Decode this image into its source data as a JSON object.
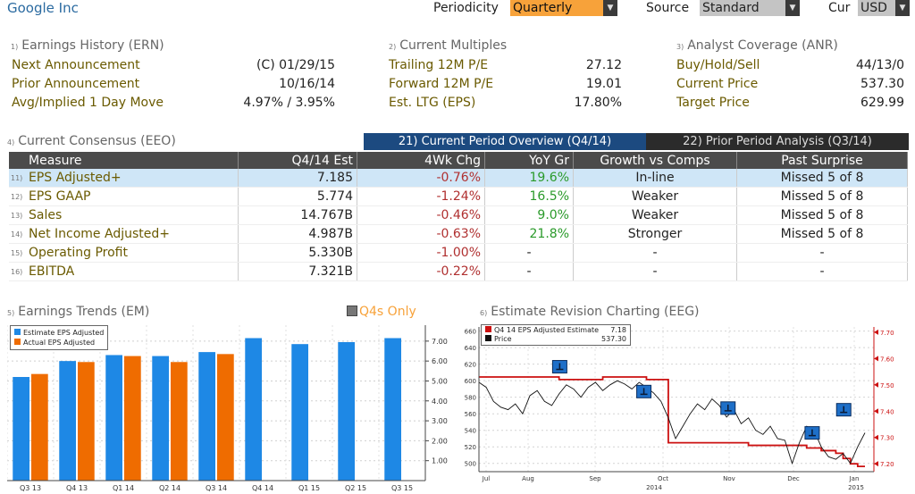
{
  "header": {
    "ticker": "Google Inc",
    "periodicity_label": "Periodicity",
    "periodicity_value": "Quarterly",
    "source_label": "Source",
    "source_value": "Standard",
    "currency_label": "Cur",
    "currency_value": "USD"
  },
  "earnings_history": {
    "num": "1)",
    "title": "Earnings History (ERN)",
    "rows": [
      {
        "label": "Next Announcement",
        "value": "(C)  01/29/15"
      },
      {
        "label": "Prior Announcement",
        "value": "10/16/14"
      },
      {
        "label": "Avg/Implied 1 Day Move",
        "value": "4.97% / 3.95%"
      }
    ]
  },
  "current_multiples": {
    "num": "2)",
    "title": "Current Multiples",
    "rows": [
      {
        "label": "Trailing 12M P/E",
        "value": "27.12"
      },
      {
        "label": "Forward 12M P/E",
        "value": "19.01"
      },
      {
        "label": "Est. LTG (EPS)",
        "value": "17.80%"
      }
    ]
  },
  "analyst_coverage": {
    "num": "3)",
    "title": "Analyst Coverage (ANR)",
    "rows": [
      {
        "label": "Buy/Hold/Sell",
        "value": "44/13/0"
      },
      {
        "label": "Current Price",
        "value": "537.30"
      },
      {
        "label": "Target Price",
        "value": "629.99"
      }
    ]
  },
  "consensus": {
    "num": "4)",
    "title": "Current Consensus (EEO)",
    "tab_current": "21) Current Period Overview (Q4/14)",
    "tab_prior": "22) Prior Period Analysis (Q3/14)",
    "columns": [
      "Measure",
      "Q4/14 Est",
      "4Wk Chg",
      "YoY Gr",
      "Growth vs Comps",
      "Past Surprise"
    ],
    "rows": [
      {
        "num": "11)",
        "measure": "EPS Adjusted+",
        "est": "7.185",
        "chg": "-0.76%",
        "yoy": "19.6%",
        "comps": "In-line",
        "surprise": "Missed 5 of 8"
      },
      {
        "num": "12)",
        "measure": "EPS GAAP",
        "est": "5.774",
        "chg": "-1.24%",
        "yoy": "16.5%",
        "comps": "Weaker",
        "surprise": "Missed 5 of 8"
      },
      {
        "num": "13)",
        "measure": "Sales",
        "est": "14.767B",
        "chg": "-0.46%",
        "yoy": "9.0%",
        "comps": "Weaker",
        "surprise": "Missed 5 of 8"
      },
      {
        "num": "14)",
        "measure": "Net Income Adjusted+",
        "est": "4.987B",
        "chg": "-0.63%",
        "yoy": "21.8%",
        "comps": "Stronger",
        "surprise": "Missed 5 of 8"
      },
      {
        "num": "15)",
        "measure": "Operating Profit",
        "est": "5.330B",
        "chg": "-1.00%",
        "yoy": "-",
        "comps": "-",
        "surprise": "-"
      },
      {
        "num": "16)",
        "measure": "EBITDA",
        "est": "7.321B",
        "chg": "-0.22%",
        "yoy": "-",
        "comps": "-",
        "surprise": "-"
      }
    ]
  },
  "earnings_trends": {
    "num": "5)",
    "title": "Earnings Trends (EM)",
    "q4_toggle": "Q4s Only",
    "legend": [
      "Estimate EPS Adjusted",
      "Actual EPS Adjusted"
    ],
    "colors": {
      "estimate": "#1e88e5",
      "actual": "#ef6c00"
    }
  },
  "revision_chart": {
    "num": "6)",
    "title": "Estimate Revision Charting (EEG)",
    "legend": [
      {
        "label": "Q4 14 EPS Adjusted Estimate",
        "value": "7.18"
      },
      {
        "label": "Price",
        "value": "537.30"
      }
    ],
    "colors": {
      "estimate": "#cc1111",
      "price": "#111111"
    }
  },
  "chart_data": [
    {
      "type": "bar",
      "title": "Earnings Trends (EM)",
      "categories": [
        "Q3 13",
        "Q4 13",
        "Q1 14",
        "Q2 14",
        "Q3 14",
        "Q4 14",
        "Q1 15",
        "Q2 15",
        "Q3 15"
      ],
      "series": [
        {
          "name": "Estimate EPS Adjusted",
          "values": [
            5.2,
            6.0,
            6.3,
            6.25,
            6.45,
            7.15,
            6.85,
            6.95,
            7.15
          ]
        },
        {
          "name": "Actual EPS Adjusted",
          "values": [
            5.35,
            5.95,
            6.25,
            5.95,
            6.35,
            null,
            null,
            null,
            null
          ]
        }
      ],
      "yticks": [
        "1.00",
        "2.00",
        "3.00",
        "4.00",
        "5.00",
        "6.00",
        "7.00"
      ],
      "ylim": [
        0,
        7.8
      ]
    },
    {
      "type": "line",
      "title": "Estimate Revision Charting (EEG)",
      "x_labels": [
        "Jul",
        "Aug",
        "Sep",
        "Oct",
        "Nov",
        "Dec",
        "Jan"
      ],
      "x_year_labels": [
        "2014",
        "2015"
      ],
      "left_yticks": [
        "500",
        "520",
        "540",
        "560",
        "580",
        "600",
        "620",
        "640",
        "660"
      ],
      "right_yticks": [
        "7.20",
        "7.30",
        "7.40",
        "7.50",
        "7.60",
        "7.70"
      ],
      "left_ylim": [
        490,
        665
      ],
      "right_ylim": [
        7.17,
        7.72
      ],
      "series": [
        {
          "name": "Price",
          "axis": "left",
          "values": [
            598,
            592,
            575,
            568,
            565,
            572,
            560,
            582,
            588,
            575,
            570,
            584,
            595,
            590,
            580,
            592,
            598,
            588,
            595,
            600,
            596,
            590,
            598,
            592,
            585,
            575,
            555,
            530,
            545,
            560,
            572,
            565,
            578,
            570,
            556,
            565,
            548,
            555,
            540,
            535,
            545,
            530,
            528,
            500,
            525,
            545,
            540,
            520,
            508,
            505,
            512,
            500,
            520,
            537
          ]
        },
        {
          "name": "Q4 14 EPS Adjusted Estimate",
          "axis": "right",
          "values": [
            7.53,
            7.53,
            7.53,
            7.53,
            7.53,
            7.53,
            7.53,
            7.53,
            7.53,
            7.53,
            7.53,
            7.52,
            7.52,
            7.52,
            7.52,
            7.52,
            7.52,
            7.53,
            7.53,
            7.53,
            7.53,
            7.53,
            7.53,
            7.52,
            7.52,
            7.52,
            7.28,
            7.28,
            7.28,
            7.28,
            7.28,
            7.28,
            7.28,
            7.28,
            7.28,
            7.28,
            7.28,
            7.27,
            7.27,
            7.27,
            7.27,
            7.27,
            7.27,
            7.27,
            7.27,
            7.26,
            7.26,
            7.25,
            7.25,
            7.24,
            7.22,
            7.2,
            7.19,
            7.19
          ]
        }
      ]
    }
  ]
}
